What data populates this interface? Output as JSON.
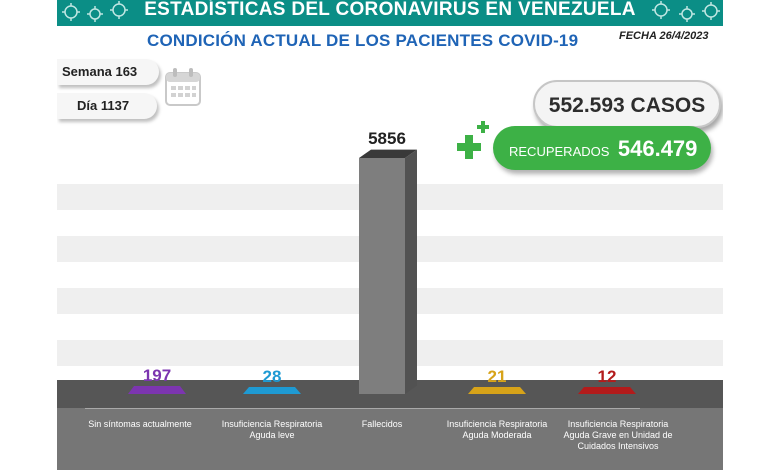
{
  "header": {
    "banner_title": "ESTADÍSTICAS DEL CORONAVIRUS EN VENEZUELA",
    "subtitle": "CONDICIÓN ACTUAL DE LOS PACIENTES COVID-19",
    "fecha": "FECHA 26/4/2023"
  },
  "counters": {
    "semana": "Semana 163",
    "dia": "Día 1137",
    "casos": "552.593 CASOS",
    "recuperados_label": "RECUPERADOS",
    "recuperados_value": "546.479"
  },
  "icons": [
    "virus-icon",
    "calendar-icon",
    "plus-icon"
  ],
  "colors": {
    "banner": "#0b8e86",
    "subtitle": "#1f64b6",
    "recuperados": "#3db146"
  },
  "chart_data": {
    "type": "bar",
    "categories": [
      "Sin síntomas actualmente",
      "Insuficiencia Respiratoria Aguda leve",
      "Fallecidos",
      "Insuficiencia Respiratoria Aguda Moderada",
      "Insuficiencia Respiratoria Aguda Grave en Unidad de Cuidados Intensivos"
    ],
    "values": [
      197,
      28,
      5856,
      21,
      12
    ],
    "value_labels": [
      "197",
      "28",
      "5856",
      "21",
      "12"
    ],
    "colors": [
      "#7c35b0",
      "#1e9ad3",
      "#7e7e7e",
      "#d7a319",
      "#b31b1b"
    ],
    "label_colors": [
      "#7c35b0",
      "#1e9ad3",
      "#222222",
      "#d7a319",
      "#b31b1b"
    ],
    "title": "",
    "xlabel": "",
    "ylabel": "",
    "grid": true
  }
}
